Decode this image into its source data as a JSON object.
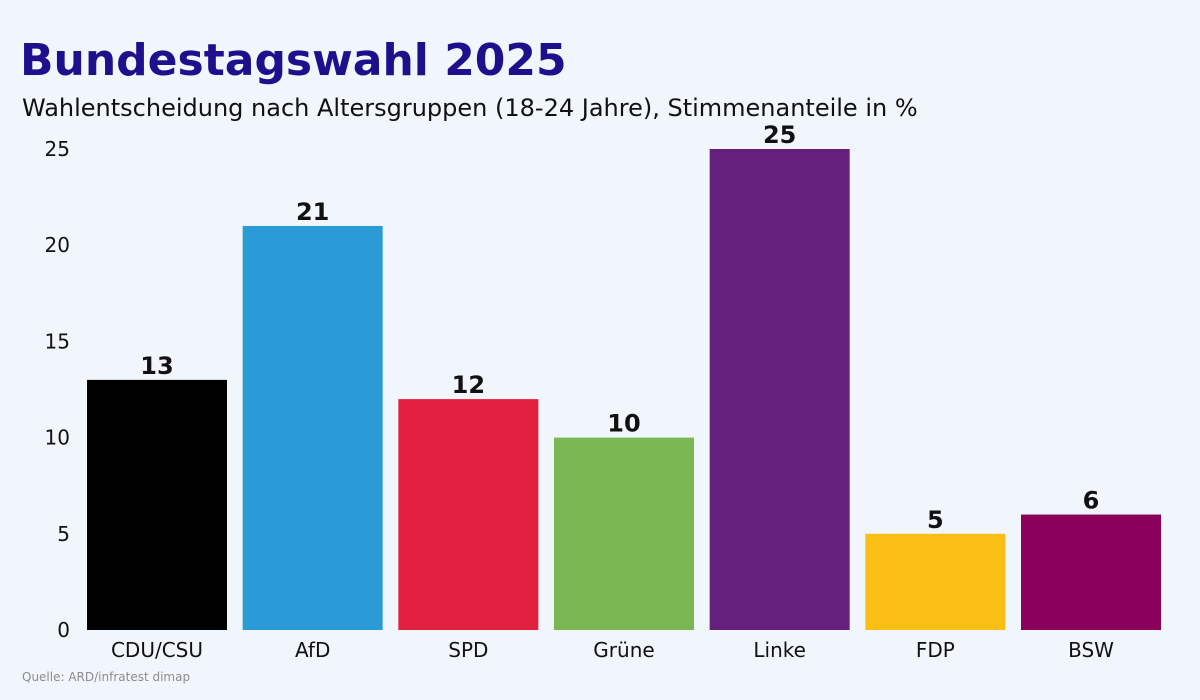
{
  "chart_data": {
    "type": "bar",
    "title": "Bundestagswahl 2025",
    "subtitle": "Wahlentscheidung nach Altersgruppen (18-24 Jahre), Stimmenanteile in %",
    "categories": [
      "CDU/CSU",
      "AfD",
      "SPD",
      "Grüne",
      "Linke",
      "FDP",
      "BSW"
    ],
    "values": [
      13,
      21,
      12,
      10,
      25,
      5,
      6
    ],
    "value_labels": [
      "13",
      "21",
      "12",
      "10",
      "25",
      "5",
      "6"
    ],
    "colors": [
      "#000000",
      "#2b9bd8",
      "#e0203e",
      "#7ab652",
      "#64207c",
      "#fbbe14",
      "#8b005a"
    ],
    "xlabel": "",
    "ylabel": "",
    "ylim": [
      0,
      25
    ],
    "yticks": [
      "0",
      "5",
      "10",
      "15",
      "20",
      "25"
    ],
    "grid": false,
    "source": "Quelle: ARD/infratest dimap"
  }
}
